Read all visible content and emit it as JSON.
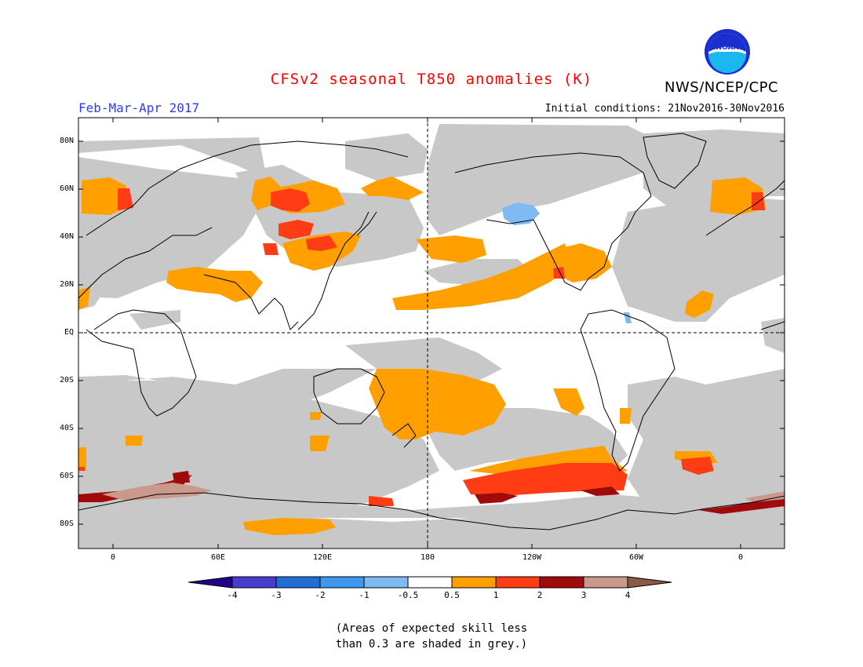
{
  "title": "CFSv2 seasonal T850 anomalies (K)",
  "season": "Feb-Mar-Apr 2017",
  "initial_conditions": "Initial conditions: 21Nov2016-30Nov2016",
  "agency": "NWS/NCEP/CPC",
  "logo": {
    "text": "NOAA",
    "icon": "noaa-logo-icon"
  },
  "lat_labels": [
    "80N",
    "60N",
    "40N",
    "20N",
    "EQ",
    "20S",
    "40S",
    "60S",
    "80S"
  ],
  "lon_labels": [
    "0",
    "60E",
    "120E",
    "180",
    "120W",
    "60W",
    "0"
  ],
  "colorbar": {
    "labels": [
      "-4",
      "-3",
      "-2",
      "-1",
      "-0.5",
      "0.5",
      "1",
      "2",
      "3",
      "4"
    ],
    "colors": [
      "#240088",
      "#4a3ccc",
      "#1f6ed6",
      "#3f96ee",
      "#7fbaf3",
      "#ffffff",
      "#ff9f00",
      "#ff3c14",
      "#a00a0a",
      "#c9998c",
      "#8a5a48"
    ]
  },
  "colors": {
    "low_skill_grey": "#c8c8c8",
    "anomaly_0_5_1": "#ff9f00",
    "anomaly_1_2": "#ff3c14",
    "anomaly_2_3": "#a00a0a",
    "anomaly_3_4": "#c9998c",
    "cold_anomaly": "#7fbaf3"
  },
  "note": {
    "line1": "(Areas of expected skill less",
    "line2": "than 0.3 are shaded in grey.)"
  }
}
